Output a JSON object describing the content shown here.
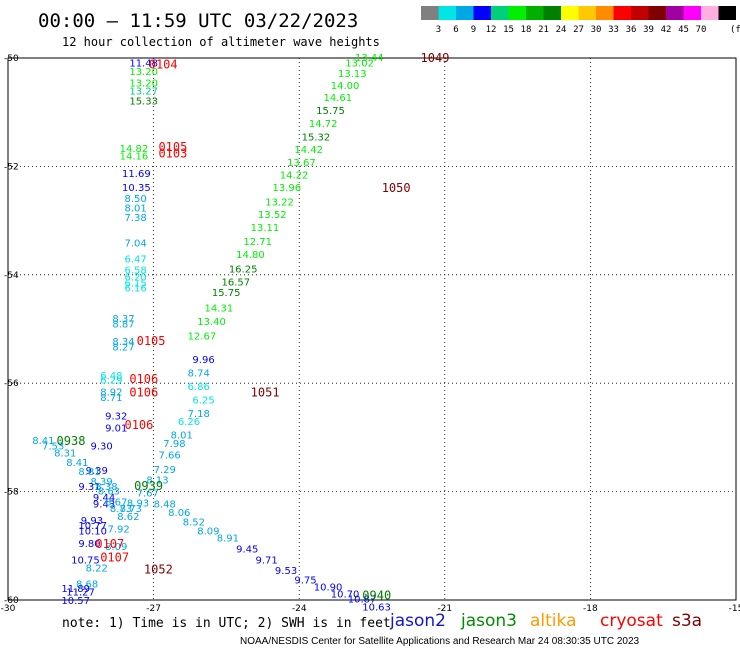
{
  "title": "00:00 – 11:59 UTC 03/22/2023",
  "subtitle": "12 hour collection of altimeter wave heights",
  "legend_scale": {
    "colors": [
      "#808080",
      "#00e5e5",
      "#00a8e6",
      "#0000ff",
      "#00d07a",
      "#00f000",
      "#00b000",
      "#008000",
      "#ffff00",
      "#ffc800",
      "#ff8c00",
      "#ff0000",
      "#c00000",
      "#800000",
      "#a000a0",
      "#ff00ff",
      "#ffb0e0",
      "#000000"
    ],
    "labels": [
      "3",
      "6",
      "9",
      "12",
      "15",
      "18",
      "21",
      "24",
      "27",
      "30",
      "33",
      "36",
      "39",
      "42",
      "45",
      "70"
    ],
    "unit": "(ft)"
  },
  "note": "note: 1) Time is in UTC; 2) SWH is in feet",
  "satellites": [
    {
      "name": "jason2",
      "color": "#1414d0"
    },
    {
      "name": "jason3",
      "color": "#008c00"
    },
    {
      "name": "altika",
      "color": "#ff9900"
    },
    {
      "name": "cryosat",
      "color": "#ff0000"
    },
    {
      "name": "s3a",
      "color": "#800000"
    }
  ],
  "footer": "NOAA/NESDIS Center for Satellite Applications and Research   Mar 24 08:30:35 UTC 2023",
  "chart_data": {
    "type": "scatter",
    "xlim": [
      -30,
      -15
    ],
    "ylim": [
      -60,
      -50
    ],
    "x_ticks": [
      "-30",
      "-27",
      "-24",
      "-21",
      "-18",
      "-15"
    ],
    "y_ticks": [
      "-50",
      "-52",
      "-54",
      "-56",
      "-58",
      "-60"
    ],
    "grid": true,
    "points": [
      {
        "x": -27.5,
        "y": -50.08,
        "label": "11.48",
        "color": "#0000ff"
      },
      {
        "x": -27.5,
        "y": -50.24,
        "label": "13.20",
        "color": "#00f000"
      },
      {
        "x": -27.5,
        "y": -50.45,
        "label": "13.20",
        "color": "#00f000"
      },
      {
        "x": -27.5,
        "y": -50.6,
        "label": "13.27",
        "color": "#00d07a"
      },
      {
        "x": -27.5,
        "y": -50.78,
        "label": "15.33",
        "color": "#008000"
      },
      {
        "x": -27.7,
        "y": -51.66,
        "label": "14.82",
        "color": "#00f000"
      },
      {
        "x": -27.7,
        "y": -51.8,
        "label": "14.16",
        "color": "#00f000"
      },
      {
        "x": -27.65,
        "y": -52.12,
        "label": "11.69",
        "color": "#0000ff"
      },
      {
        "x": -27.65,
        "y": -52.38,
        "label": "10.35",
        "color": "#0000ff"
      },
      {
        "x": -27.6,
        "y": -52.58,
        "label": "8.50",
        "color": "#00a8e6"
      },
      {
        "x": -27.6,
        "y": -52.76,
        "label": "8.01",
        "color": "#00a8e6"
      },
      {
        "x": -27.6,
        "y": -52.93,
        "label": "7.38",
        "color": "#00a8e6"
      },
      {
        "x": -27.6,
        "y": -53.4,
        "label": "7.04",
        "color": "#00a8e6"
      },
      {
        "x": -27.6,
        "y": -53.7,
        "label": "6.47",
        "color": "#00e5e5"
      },
      {
        "x": -27.6,
        "y": -53.9,
        "label": "6.58",
        "color": "#00e5e5"
      },
      {
        "x": -27.6,
        "y": -54.03,
        "label": "6.20",
        "color": "#00e5e5"
      },
      {
        "x": -27.6,
        "y": -54.14,
        "label": "6.15",
        "color": "#00e5e5"
      },
      {
        "x": -27.6,
        "y": -54.23,
        "label": "6.16",
        "color": "#00e5e5"
      },
      {
        "x": -27.85,
        "y": -54.8,
        "label": "8.37",
        "color": "#00a8e6"
      },
      {
        "x": -27.85,
        "y": -54.9,
        "label": "8.87",
        "color": "#00a8e6"
      },
      {
        "x": -27.85,
        "y": -55.22,
        "label": "8.34",
        "color": "#00a8e6"
      },
      {
        "x": -27.85,
        "y": -55.32,
        "label": "8.27",
        "color": "#00a8e6"
      },
      {
        "x": -28.1,
        "y": -55.85,
        "label": "6.48",
        "color": "#00e5e5"
      },
      {
        "x": -28.1,
        "y": -55.93,
        "label": "6.29",
        "color": "#00e5e5"
      },
      {
        "x": -28.1,
        "y": -56.15,
        "label": "8.92",
        "color": "#00a8e6"
      },
      {
        "x": -28.1,
        "y": -56.25,
        "label": "8.71",
        "color": "#00a8e6"
      },
      {
        "x": -28.0,
        "y": -56.6,
        "label": "9.32",
        "color": "#0000ff"
      },
      {
        "x": -28.0,
        "y": -56.82,
        "label": "9.01",
        "color": "#0000ff"
      },
      {
        "x": -28.3,
        "y": -57.15,
        "label": "9.30",
        "color": "#0000ff"
      },
      {
        "x": -28.4,
        "y": -57.6,
        "label": "9.39",
        "color": "#0000ff"
      },
      {
        "x": -29.5,
        "y": -57.05,
        "label": "8.41",
        "color": "#00a8e6"
      },
      {
        "x": -29.3,
        "y": -57.15,
        "label": "7.53",
        "color": "#00a8e6"
      },
      {
        "x": -29.05,
        "y": -57.28,
        "label": "8.31",
        "color": "#00a8e6"
      },
      {
        "x": -28.8,
        "y": -57.45,
        "label": "8.41",
        "color": "#00a8e6"
      },
      {
        "x": -28.55,
        "y": -57.62,
        "label": "8.81",
        "color": "#00a8e6"
      },
      {
        "x": -28.3,
        "y": -57.8,
        "label": "8.39",
        "color": "#00a8e6"
      },
      {
        "x": -28.55,
        "y": -57.9,
        "label": "9.31",
        "color": "#0000ff"
      },
      {
        "x": -28.2,
        "y": -57.9,
        "label": "8.38",
        "color": "#00a8e6"
      },
      {
        "x": -28.15,
        "y": -57.98,
        "label": "8.63",
        "color": "#00a8e6"
      },
      {
        "x": -28.25,
        "y": -58.1,
        "label": "9.44",
        "color": "#0000ff"
      },
      {
        "x": -28.25,
        "y": -58.22,
        "label": "9.43",
        "color": "#0000ff"
      },
      {
        "x": -28.0,
        "y": -58.18,
        "label": "8.67",
        "color": "#00a8e6"
      },
      {
        "x": -27.9,
        "y": -58.3,
        "label": "8.73",
        "color": "#00a8e6"
      },
      {
        "x": -27.7,
        "y": -58.3,
        "label": "8.73",
        "color": "#00a8e6"
      },
      {
        "x": -28.5,
        "y": -58.52,
        "label": "9.93",
        "color": "#0000ff"
      },
      {
        "x": -28.55,
        "y": -58.62,
        "label": "10.77",
        "color": "#0000ff"
      },
      {
        "x": -28.55,
        "y": -58.72,
        "label": "10.10",
        "color": "#0000ff"
      },
      {
        "x": -28.55,
        "y": -58.95,
        "label": "9.80",
        "color": "#0000ff"
      },
      {
        "x": -28.7,
        "y": -59.25,
        "label": "10.75",
        "color": "#0000ff"
      },
      {
        "x": -28.4,
        "y": -59.4,
        "label": "8.22",
        "color": "#00a8e6"
      },
      {
        "x": -28.6,
        "y": -59.7,
        "label": "8.68",
        "color": "#00a8e6"
      },
      {
        "x": -28.9,
        "y": -59.78,
        "label": "11.89",
        "color": "#0000ff"
      },
      {
        "x": -28.8,
        "y": -59.84,
        "label": "11.27",
        "color": "#0000ff"
      },
      {
        "x": -28.9,
        "y": -60.0,
        "label": "10.57",
        "color": "#0000ff"
      },
      {
        "x": -26.3,
        "y": -56.55,
        "label": "7.18",
        "color": "#00a8e6"
      },
      {
        "x": -26.5,
        "y": -56.7,
        "label": "6.26",
        "color": "#00e5e5"
      },
      {
        "x": -26.65,
        "y": -56.95,
        "label": "8.01",
        "color": "#00a8e6"
      },
      {
        "x": -26.8,
        "y": -57.1,
        "label": "7.98",
        "color": "#00a8e6"
      },
      {
        "x": -26.9,
        "y": -57.32,
        "label": "7.66",
        "color": "#00a8e6"
      },
      {
        "x": -27.0,
        "y": -57.58,
        "label": "7.29",
        "color": "#00a8e6"
      },
      {
        "x": -27.15,
        "y": -57.78,
        "label": "8.13",
        "color": "#00a8e6"
      },
      {
        "x": -27.35,
        "y": -58.02,
        "label": "7.67",
        "color": "#00a8e6"
      },
      {
        "x": -27.55,
        "y": -58.2,
        "label": "8.93",
        "color": "#00a8e6"
      },
      {
        "x": -27.75,
        "y": -58.45,
        "label": "8.62",
        "color": "#00a8e6"
      },
      {
        "x": -27.95,
        "y": -58.68,
        "label": "7.92",
        "color": "#00a8e6"
      },
      {
        "x": -28.0,
        "y": -59.0,
        "label": "8.09",
        "color": "#00a8e6"
      },
      {
        "x": -26.2,
        "y": -56.3,
        "label": "6.25",
        "color": "#00e5e5"
      },
      {
        "x": -26.3,
        "y": -56.05,
        "label": "6.86",
        "color": "#00e5e5"
      },
      {
        "x": -26.3,
        "y": -55.8,
        "label": "8.74",
        "color": "#00a8e6"
      },
      {
        "x": -26.2,
        "y": -55.55,
        "label": "9.96",
        "color": "#0000ff"
      },
      {
        "x": -26.3,
        "y": -55.12,
        "label": "12.67",
        "color": "#00f000"
      },
      {
        "x": -26.1,
        "y": -54.85,
        "label": "13.40",
        "color": "#00f000"
      },
      {
        "x": -25.95,
        "y": -54.6,
        "label": "14.31",
        "color": "#00f000"
      },
      {
        "x": -25.8,
        "y": -54.32,
        "label": "15.75",
        "color": "#008000"
      },
      {
        "x": -25.6,
        "y": -54.12,
        "label": "16.57",
        "color": "#008000"
      },
      {
        "x": -25.45,
        "y": -53.88,
        "label": "16.25",
        "color": "#008000"
      },
      {
        "x": -25.3,
        "y": -53.62,
        "label": "14.80",
        "color": "#00f000"
      },
      {
        "x": -25.15,
        "y": -53.38,
        "label": "12.71",
        "color": "#00f000"
      },
      {
        "x": -25.0,
        "y": -53.12,
        "label": "13.11",
        "color": "#00f000"
      },
      {
        "x": -24.85,
        "y": -52.88,
        "label": "13.52",
        "color": "#00f000"
      },
      {
        "x": -24.7,
        "y": -52.65,
        "label": "13.22",
        "color": "#00f000"
      },
      {
        "x": -24.55,
        "y": -52.38,
        "label": "13.96",
        "color": "#00f000"
      },
      {
        "x": -24.4,
        "y": -52.15,
        "label": "14.22",
        "color": "#00f000"
      },
      {
        "x": -24.25,
        "y": -51.92,
        "label": "13.67",
        "color": "#00f000"
      },
      {
        "x": -24.1,
        "y": -51.68,
        "label": "14.42",
        "color": "#00f000"
      },
      {
        "x": -23.95,
        "y": -51.45,
        "label": "15.32",
        "color": "#008000"
      },
      {
        "x": -23.8,
        "y": -51.2,
        "label": "14.72",
        "color": "#00f000"
      },
      {
        "x": -23.65,
        "y": -50.96,
        "label": "15.75",
        "color": "#008000"
      },
      {
        "x": -23.5,
        "y": -50.72,
        "label": "14.61",
        "color": "#00f000"
      },
      {
        "x": -23.35,
        "y": -50.5,
        "label": "14.00",
        "color": "#00f000"
      },
      {
        "x": -23.2,
        "y": -50.28,
        "label": "13.13",
        "color": "#00f000"
      },
      {
        "x": -23.05,
        "y": -50.08,
        "label": "13.02",
        "color": "#00f000"
      },
      {
        "x": -22.85,
        "y": -49.98,
        "label": "13.44",
        "color": "#00f000"
      },
      {
        "x": -26.1,
        "y": -58.72,
        "label": "8.09",
        "color": "#00a8e6"
      },
      {
        "x": -26.4,
        "y": -58.55,
        "label": "8.52",
        "color": "#00a8e6"
      },
      {
        "x": -26.7,
        "y": -58.38,
        "label": "8.06",
        "color": "#00a8e6"
      },
      {
        "x": -27.0,
        "y": -58.22,
        "label": "8.48",
        "color": "#00a8e6"
      },
      {
        "x": -25.7,
        "y": -58.85,
        "label": "8.91",
        "color": "#00a8e6"
      },
      {
        "x": -25.3,
        "y": -59.05,
        "label": "9.45",
        "color": "#0000ff"
      },
      {
        "x": -24.9,
        "y": -59.25,
        "label": "9.71",
        "color": "#0000ff"
      },
      {
        "x": -24.5,
        "y": -59.45,
        "label": "9.53",
        "color": "#0000ff"
      },
      {
        "x": -24.1,
        "y": -59.62,
        "label": "9.75",
        "color": "#0000ff"
      },
      {
        "x": -23.7,
        "y": -59.75,
        "label": "10.90",
        "color": "#0000ff"
      },
      {
        "x": -23.35,
        "y": -59.88,
        "label": "10.70",
        "color": "#0000ff"
      },
      {
        "x": -23.0,
        "y": -59.97,
        "label": "10.87",
        "color": "#0000ff"
      },
      {
        "x": -22.7,
        "y": -60.12,
        "label": "10.63",
        "color": "#0000ff"
      }
    ],
    "pass_labels": [
      {
        "x": -27.1,
        "y": -50.1,
        "label": "0104",
        "color": "#ff0000"
      },
      {
        "x": -26.9,
        "y": -51.62,
        "label": "0105",
        "color": "#ff0000"
      },
      {
        "x": -26.9,
        "y": -51.74,
        "label": "0103",
        "color": "#ff0000"
      },
      {
        "x": -27.35,
        "y": -55.2,
        "label": "0105",
        "color": "#ff0000"
      },
      {
        "x": -27.5,
        "y": -55.9,
        "label": "0106",
        "color": "#ff0000"
      },
      {
        "x": -27.5,
        "y": -56.15,
        "label": "0106",
        "color": "#ff0000"
      },
      {
        "x": -27.6,
        "y": -56.75,
        "label": "0106",
        "color": "#ff0000"
      },
      {
        "x": -28.2,
        "y": -58.95,
        "label": "0107",
        "color": "#ff0000"
      },
      {
        "x": -28.1,
        "y": -59.2,
        "label": "0107",
        "color": "#ff0000"
      },
      {
        "x": -21.5,
        "y": -49.98,
        "label": "1049",
        "color": "#800000"
      },
      {
        "x": -22.3,
        "y": -52.38,
        "label": "1050",
        "color": "#800000"
      },
      {
        "x": -25.0,
        "y": -56.15,
        "label": "1051",
        "color": "#800000"
      },
      {
        "x": -27.2,
        "y": -59.42,
        "label": "1052",
        "color": "#800000"
      },
      {
        "x": -29.0,
        "y": -57.05,
        "label": "0938",
        "color": "#008000"
      },
      {
        "x": -27.4,
        "y": -57.88,
        "label": "0939",
        "color": "#008000"
      },
      {
        "x": -22.7,
        "y": -59.9,
        "label": "0940",
        "color": "#008000"
      }
    ]
  }
}
